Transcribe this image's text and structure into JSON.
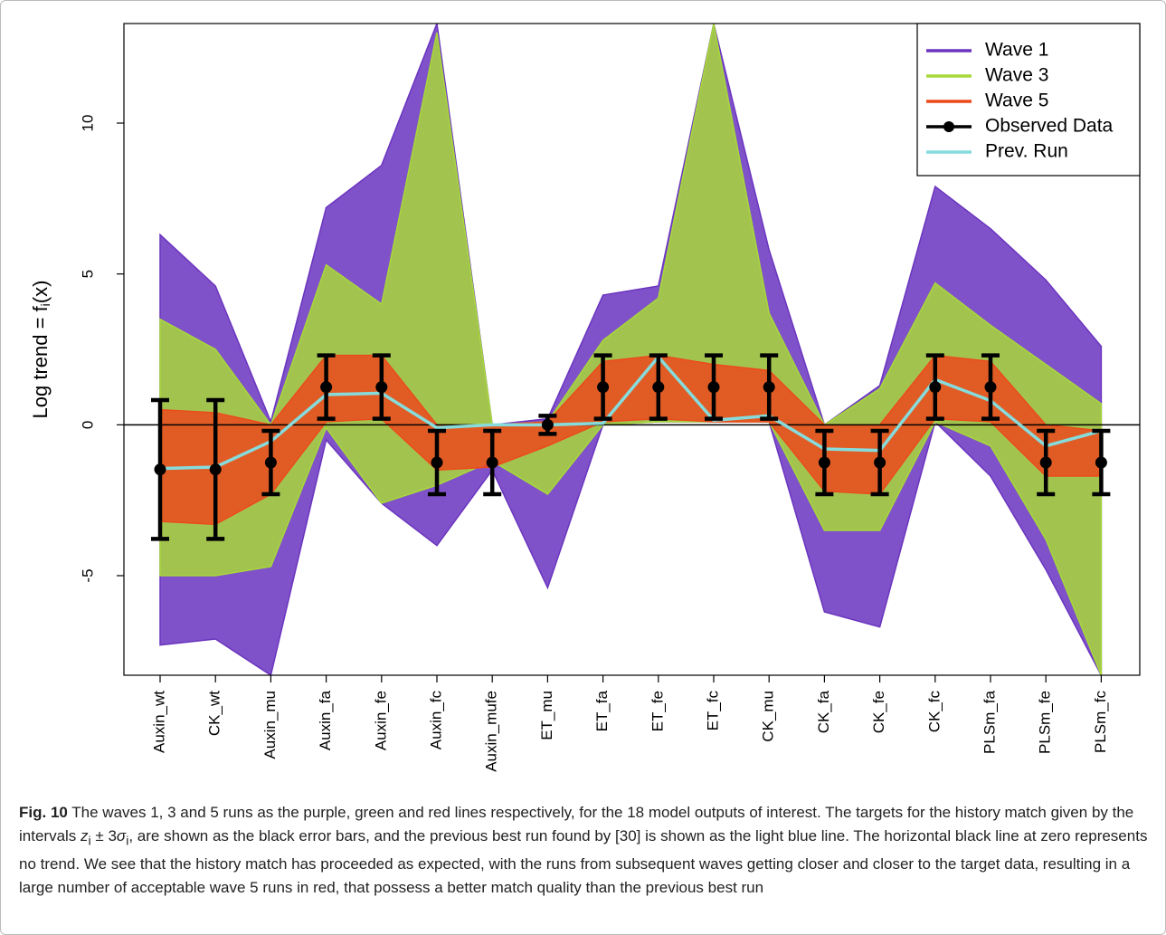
{
  "chart_data": {
    "type": "parallel",
    "ylabel": [
      "Log trend = f",
      "i",
      "(x)"
    ],
    "categories": [
      "Auxin_wt",
      "CK_wt",
      "Auxin_mu",
      "Auxin_fa",
      "Auxin_fe",
      "Auxin_fc",
      "Auxin_mufe",
      "ET_mu",
      "ET_fa",
      "ET_fe",
      "ET_fc",
      "CK_mu",
      "CK_fa",
      "CK_fe",
      "CK_fc",
      "PLSm_fa",
      "PLSm_fe",
      "PLSm_fc"
    ],
    "ylim": [
      -8.3,
      13.3
    ],
    "yticks": [
      -5,
      0,
      5,
      10
    ],
    "bands": [
      {
        "name": "Wave 1",
        "color": "#6a34bf",
        "upper": [
          6.3,
          4.6,
          0.1,
          7.2,
          8.6,
          13.3,
          0,
          0.2,
          4.3,
          4.6,
          13.3,
          5.8,
          0,
          1.3,
          7.9,
          6.5,
          4.8,
          2.6
        ],
        "lower": [
          -7.3,
          -7.1,
          -8.3,
          -0.5,
          -2.6,
          -4.0,
          -1.5,
          -5.4,
          0,
          0.1,
          0.1,
          0.1,
          -6.2,
          -6.7,
          0.1,
          -1.7,
          -4.8,
          -8.3
        ]
      },
      {
        "name": "Wave 3",
        "color": "#a8d83a",
        "upper": [
          3.5,
          2.5,
          0,
          5.3,
          4.0,
          13.0,
          0,
          0.1,
          2.8,
          4.2,
          13.3,
          3.7,
          0,
          1.2,
          4.7,
          3.3,
          2.0,
          0.7
        ],
        "lower": [
          -5.0,
          -5.0,
          -4.7,
          -0.1,
          -2.6,
          -2.0,
          -1.2,
          -2.3,
          0,
          0.1,
          0.1,
          0.1,
          -3.5,
          -3.5,
          0.1,
          -0.7,
          -3.8,
          -8.3
        ]
      },
      {
        "name": "Wave 5",
        "color": "#ec4a1c",
        "upper": [
          0.5,
          0.4,
          0,
          2.3,
          2.3,
          0,
          0,
          0.1,
          2.1,
          2.3,
          2.0,
          1.8,
          0,
          0,
          2.3,
          2.1,
          0,
          -0.2
        ],
        "lower": [
          -3.2,
          -3.3,
          -2.3,
          0.1,
          0.2,
          -1.5,
          -1.4,
          -0.7,
          0.1,
          0.2,
          0.1,
          0.1,
          -2.2,
          -2.3,
          0.2,
          0.1,
          -1.7,
          -1.7
        ]
      }
    ],
    "series": [
      {
        "name": "Observed Data",
        "color": "#000000",
        "values": [
          -1.48,
          -1.48,
          -1.25,
          1.25,
          1.25,
          -1.25,
          -1.25,
          0,
          1.25,
          1.25,
          1.25,
          1.25,
          -1.25,
          -1.25,
          1.25,
          1.25,
          -1.25,
          -1.25
        ],
        "errors": [
          2.3,
          2.3,
          1.05,
          1.05,
          1.05,
          1.05,
          1.05,
          0.3,
          1.05,
          1.05,
          1.05,
          1.05,
          1.05,
          1.05,
          1.05,
          1.05,
          1.05,
          1.05
        ]
      },
      {
        "name": "Prev. Run",
        "color": "#86dcdc",
        "values": [
          -1.45,
          -1.4,
          -0.55,
          1.0,
          1.05,
          -0.1,
          0,
          0,
          0.05,
          2.25,
          0.15,
          0.3,
          -0.8,
          -0.85,
          1.5,
          0.8,
          -0.7,
          -0.2
        ]
      }
    ]
  },
  "caption": {
    "label": "Fig. 10",
    "parts": [
      "The waves 1, 3 and 5 runs as the purple, green and red lines respectively, for the 18 model outputs of interest. The targets for the history match given by the intervals ",
      "z",
      "i",
      " ± 3",
      "σ",
      "i",
      ", are shown as the black error bars, and the previous best run found by [30] is shown as the light blue line. The horizontal black line at zero represents no trend. We see that the history match has proceeded as expected, with the runs from subsequent waves getting closer and closer to the target data, resulting in a large number of acceptable wave 5 runs in red, that possess a better match quality than the previous best run"
    ]
  }
}
